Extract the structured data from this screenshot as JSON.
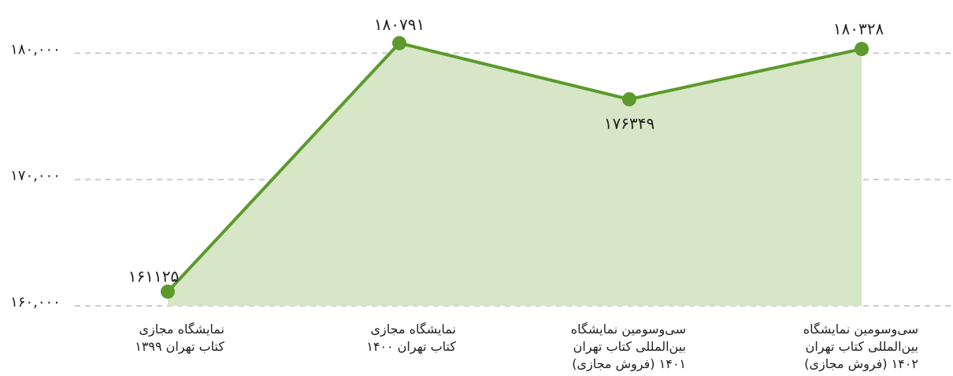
{
  "chart_data": {
    "type": "area",
    "categories": [
      "نمایشگاه مجازی\nکتاب تهران ۱۳۹۹",
      "نمایشگاه مجازی\nکتاب تهران ۱۴۰۰",
      "سی‌وسومین نمایشگاه\nبین‌المللی کتاب تهران\n(فروش مجازی) ۱۴۰۱",
      "سی‌وسومین نمایشگاه\nبین‌المللی کتاب تهران\n(فروش مجازی) ۱۴۰۲"
    ],
    "values": [
      161125,
      180791,
      176349,
      180328
    ],
    "value_labels": [
      "۱۶۱۱۲۵",
      "۱۸۰۷۹۱",
      "۱۷۶۳۴۹",
      "۱۸۰۳۲۸"
    ],
    "color": "#5b9a2b",
    "fill_color": "#d6e6c6",
    "ylim": [
      160000,
      184000
    ],
    "yticks": [
      {
        "value": 160000,
        "label": "۱۶۰,۰۰۰"
      },
      {
        "value": 170000,
        "label": "۱۷۰,۰۰۰"
      },
      {
        "value": 180000,
        "label": "۱۸۰,۰۰۰"
      }
    ],
    "grid": true
  }
}
